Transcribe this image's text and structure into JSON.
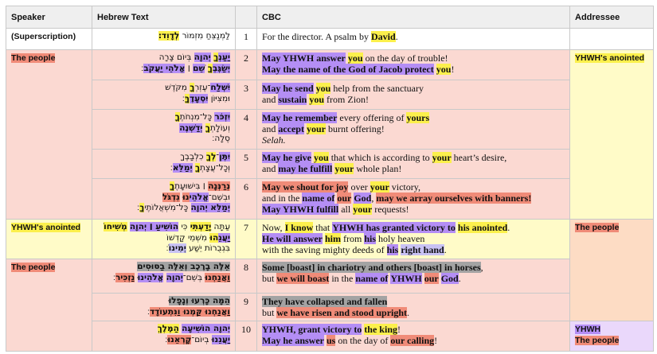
{
  "highlights": {
    "P": "#b48ef5",
    "Y": "#fcf04c",
    "R": "#f08b78",
    "G": "#a3a3a3",
    "L": "#c8c2f4"
  },
  "header": [
    "Speaker",
    "Hebrew Text",
    "CBC",
    "Addressee"
  ],
  "speakers": [
    {
      "label": "(Superscription)",
      "span": 1,
      "bg": "#ffffff"
    },
    {
      "label": "The people",
      "hl": "R",
      "span": 5,
      "bg": "#fbd9d2"
    },
    {
      "label": "YHWH's anointed",
      "hl": "Y",
      "span": 1,
      "bg": "#fffbc8"
    },
    {
      "label": "The people",
      "hl": "R",
      "span": 3,
      "bg": "#fbd9d2"
    }
  ],
  "addressees": [
    {
      "labels": [],
      "span": 1,
      "bg": "#ffffff"
    },
    {
      "labels": [
        [
          "YHWH's anointed",
          "Y"
        ]
      ],
      "span": 5,
      "bg": "#fffbc8"
    },
    {
      "labels": [
        [
          "The people",
          "R"
        ]
      ],
      "span": 3,
      "bg": "#fddcc4"
    },
    {
      "labels": [
        [
          "YHWH",
          "P"
        ],
        [
          "The people",
          "R"
        ]
      ],
      "span": 1,
      "bg": "#ead8fb"
    }
  ],
  "verses": [
    {
      "verse": 1,
      "bg": "#ffffff",
      "hebrew": [
        [
          "לַמְנַצֵּחַ מִזְמוֹר ",
          [
            "לְדָוִד׃",
            "Y"
          ]
        ]
      ],
      "cbc": [
        [
          "For the director. A psalm by ",
          [
            "David",
            "Y"
          ],
          "."
        ]
      ]
    },
    {
      "verse": 2,
      "bg": "#fbd9d2",
      "hebrew": [
        [
          [
            "יַעַנְ",
            "P"
          ],
          [
            "ךָ",
            "Y"
          ],
          " ",
          [
            "יְהוָה",
            "P"
          ],
          " בְּיוֹם צָרָה"
        ],
        [
          [
            "יְשַׂגֶּבְ",
            "P"
          ],
          [
            "ךָ",
            "Y"
          ],
          " ",
          [
            "שֵׁם",
            "P"
          ],
          " ׀ ",
          [
            "אֱלֹהֵי יַעֲקֹב",
            "P"
          ],
          "׃"
        ]
      ],
      "cbc": [
        [
          [
            "May YHWH answer",
            "P"
          ],
          " ",
          [
            "you",
            "Y"
          ],
          " on the day of trouble!"
        ],
        [
          [
            "May the name of the God of Jacob protect",
            "P"
          ],
          " ",
          [
            "you",
            "Y"
          ],
          "!"
        ]
      ]
    },
    {
      "verse": 3,
      "bg": "#fbd9d2",
      "hebrew": [
        [
          [
            "יִשְׁלַח",
            "P"
          ],
          "־עֶזְרְ",
          [
            "ךָ",
            "Y"
          ],
          " מִקֹּדֶשׁ"
        ],
        [
          "וּמִצִּיּוֹן ",
          [
            "יִסְעָדֶ",
            "P"
          ],
          [
            "ךָּ",
            "Y"
          ],
          "׃"
        ]
      ],
      "cbc": [
        [
          [
            "May he send",
            "P"
          ],
          " ",
          [
            "you",
            "Y"
          ],
          " help from the sanctuary"
        ],
        [
          "and ",
          [
            "sustain",
            "P"
          ],
          " ",
          [
            "you",
            "Y"
          ],
          " from Zion!"
        ]
      ]
    },
    {
      "verse": 4,
      "bg": "#fbd9d2",
      "hebrew": [
        [
          [
            "יִזְכֹּר",
            "P"
          ],
          " כָּל־מִנְחֹתֶ",
          [
            "ךָ",
            "Y"
          ]
        ],
        [
          "וְעוֹלָתְ",
          [
            "ךָ",
            "Y"
          ],
          " ",
          [
            "יְדַשְּׁנֶה",
            "P"
          ]
        ],
        [
          "סֶלָה׃"
        ]
      ],
      "cbc": [
        [
          [
            "May he remember",
            "P"
          ],
          " every offering of ",
          [
            "yours",
            "Y"
          ]
        ],
        [
          "and ",
          [
            "accept",
            "P"
          ],
          " ",
          [
            "your",
            "Y"
          ],
          " burnt offering!"
        ],
        [
          [
            "Selah.",
            "I"
          ]
        ]
      ]
    },
    {
      "verse": 5,
      "bg": "#fbd9d2",
      "hebrew": [
        [
          [
            "יִתֶּן",
            "P"
          ],
          "־",
          [
            "לְךָ",
            "Y"
          ],
          " כִלְבָבֶךָ"
        ],
        [
          "וְכָל־עֲצָתְ",
          [
            "ךָ",
            "Y"
          ],
          " ",
          [
            "יְמַלֵּא",
            "P"
          ],
          "׃"
        ]
      ],
      "cbc": [
        [
          [
            "May he give",
            "P"
          ],
          " ",
          [
            "you",
            "Y"
          ],
          " that which is according to ",
          [
            "your",
            "Y"
          ],
          " heart’s desire,"
        ],
        [
          "and ",
          [
            "may he fulfill",
            "P"
          ],
          " ",
          [
            "your",
            "Y"
          ],
          " whole plan!"
        ]
      ]
    },
    {
      "verse": 6,
      "bg": "#fbd9d2",
      "hebrew": [
        [
          [
            "נְרַנְּנָה",
            "R"
          ],
          " ׀ בִּישׁוּעָתֶ",
          [
            "ךָ",
            "Y"
          ]
        ],
        [
          "וּבְשֵׁם־",
          [
            "אֱלֹהֵי",
            "P"
          ],
          [
            "נוּ",
            "R"
          ],
          " ",
          [
            "נִדְגֹּל",
            "R"
          ]
        ],
        [
          [
            "יְמַלֵּא יְהוָה",
            "P"
          ],
          " כָּל־מִשְׁאֲלוֹתֶי",
          [
            "ךָ",
            "Y"
          ],
          "׃"
        ]
      ],
      "cbc": [
        [
          [
            "May we shout for joy",
            "R"
          ],
          " over ",
          [
            "your",
            "Y"
          ],
          " victory,"
        ],
        [
          "and in the ",
          [
            "name of",
            "P"
          ],
          " ",
          [
            "our",
            "R"
          ],
          " ",
          [
            "God",
            "P"
          ],
          ", ",
          [
            "may we array ourselves with banners!",
            "R"
          ]
        ],
        [
          [
            "May YHWH fulfill",
            "P"
          ],
          " all ",
          [
            "your",
            "Y"
          ],
          " requests!"
        ]
      ]
    },
    {
      "verse": 7,
      "bg": "#fffbc8",
      "hebrew": [
        [
          "עַתָּה ",
          [
            "יָדַעְתִּי",
            "Y"
          ],
          " כִּי ",
          [
            "הוֹשִׁיעַ ׀ יְהוָה",
            "P"
          ],
          " ",
          [
            "מְשִׁיחוֹ",
            "Y"
          ]
        ],
        [
          [
            "יַעֲנֵ",
            "P"
          ],
          [
            "הוּ",
            "Y"
          ],
          " מִשְּׁמֵי קָדְשׁוֹ"
        ],
        [
          "בִּגְבֻרוֹת יֵשַׁע ",
          [
            "יְמִינוֹ",
            "L"
          ],
          "׃"
        ]
      ],
      "cbc": [
        [
          "Now, ",
          [
            "I know",
            "Y"
          ],
          " that ",
          [
            "YHWH has granted victory to",
            "P"
          ],
          " ",
          [
            "his anointed",
            "Y"
          ],
          "."
        ],
        [
          [
            "He will answer",
            "P"
          ],
          " ",
          [
            "him",
            "Y"
          ],
          " from ",
          [
            "his",
            "P"
          ],
          " holy heaven"
        ],
        [
          "with the saving mighty deeds of ",
          [
            "his",
            "P"
          ],
          " ",
          [
            "right hand",
            "L"
          ],
          "."
        ]
      ]
    },
    {
      "verse": 8,
      "bg": "#fbd9d2",
      "hebrew": [
        [
          [
            "אֵלֶּה בָרֶכֶב וְאֵלֶּה בַסּוּסִים",
            "G"
          ]
        ],
        [
          [
            "וַאֲנַחְנוּ",
            "R"
          ],
          " בְּשֵׁם־",
          [
            "יְהוָה",
            "P"
          ],
          " ",
          [
            "אֱלֹהֵינוּ",
            "P"
          ],
          " ",
          [
            "נַזְכִּיר",
            "R"
          ],
          "׃"
        ]
      ],
      "cbc": [
        [
          [
            "Some [boast] in chariotry and others [boast] in horses",
            "G"
          ],
          ","
        ],
        [
          "but ",
          [
            "we will boast",
            "R"
          ],
          " in the ",
          [
            "name of",
            "P"
          ],
          " ",
          [
            "YHWH",
            "P"
          ],
          " ",
          [
            "our",
            "R"
          ],
          " ",
          [
            "God",
            "P"
          ],
          "."
        ]
      ]
    },
    {
      "verse": 9,
      "bg": "#fbd9d2",
      "hebrew": [
        [
          [
            "הֵמָּה כָּרְעוּ וְנָפָלוּ",
            "G"
          ]
        ],
        [
          [
            "וַאֲנַחְנוּ קַּמְנוּ וַנִּתְעוֹדָד",
            "R"
          ],
          "׃"
        ]
      ],
      "cbc": [
        [
          [
            "They have collapsed and fallen",
            "G"
          ]
        ],
        [
          "but ",
          [
            "we have risen and stood upright",
            "R"
          ],
          "."
        ]
      ]
    },
    {
      "verse": 10,
      "bg": "#fbd9d2",
      "hebrew": [
        [
          [
            "יְהוָה הוֹשִׁיעָה",
            "P"
          ],
          " ",
          [
            "הַמֶּלֶךְ",
            "Y"
          ]
        ],
        [
          [
            "יַעֲנֵנוּ",
            "P"
          ],
          " בְיוֹם־",
          [
            "קָרְאֵנוּ",
            "R"
          ],
          "׃"
        ]
      ],
      "cbc": [
        [
          [
            "YHWH, grant victory to",
            "P"
          ],
          " ",
          [
            "the king",
            "Y"
          ],
          "!"
        ],
        [
          [
            "May he answer",
            "P"
          ],
          " ",
          [
            "us",
            "R"
          ],
          " on the day of ",
          [
            "our calling",
            "R"
          ],
          "!"
        ]
      ]
    }
  ]
}
